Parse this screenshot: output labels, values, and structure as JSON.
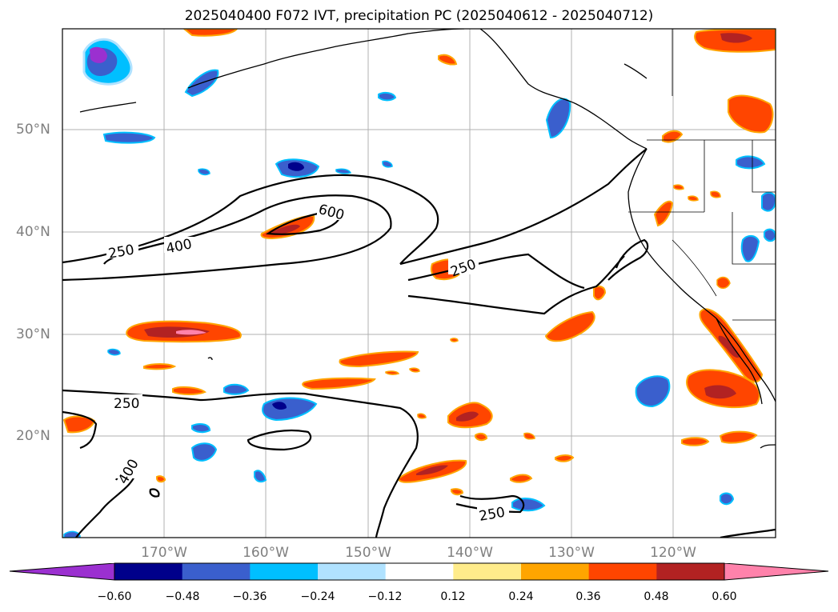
{
  "title": "2025040400 F072 IVT, precipitation PC (2025040612 - 2025040712)",
  "lat_labels": [
    "50°N",
    "40°N",
    "30°N",
    "20°N"
  ],
  "lon_labels": [
    "170°W",
    "160°W",
    "150°W",
    "140°W",
    "130°W",
    "120°W"
  ],
  "contour_labels": [
    "600",
    "400",
    "250",
    "250",
    "250",
    "400",
    "250"
  ],
  "colorbar": {
    "ticks": [
      "−0.60",
      "−0.48",
      "−0.36",
      "−0.24",
      "−0.12",
      "0.12",
      "0.24",
      "0.36",
      "0.48",
      "0.60"
    ],
    "colors": [
      "#9b30d0",
      "#00008b",
      "#3a5fcd",
      "#00bfff",
      "#b0e2ff",
      "#ffffff",
      "#ffec8b",
      "#ffa500",
      "#ff4500",
      "#b22222",
      "#ff82ab"
    ]
  }
}
